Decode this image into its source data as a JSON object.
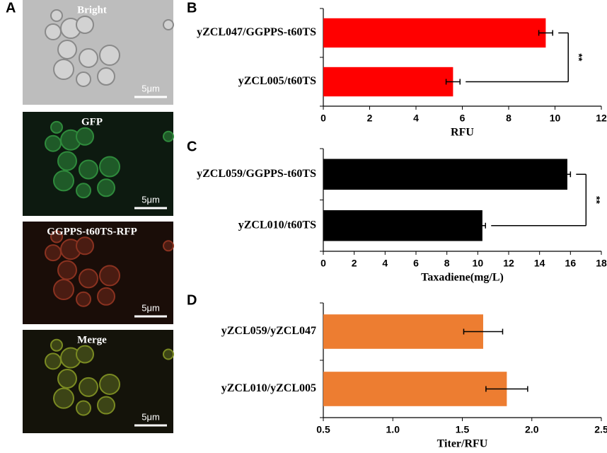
{
  "image_panels": {
    "label": "A",
    "images": [
      {
        "label": "Bright",
        "scale_bar": "5μm"
      },
      {
        "label": "GFP",
        "scale_bar": "5μm"
      },
      {
        "label": "GGPPS-t60TS-RFP",
        "scale_bar": "5μm"
      },
      {
        "label": "Merge",
        "scale_bar": "5μm"
      }
    ]
  },
  "chart_data": [
    {
      "type": "hbar",
      "panel": "B",
      "categories": [
        "yZCL047/GGPPS-t60TS",
        "yZCL005/t60TS"
      ],
      "values": [
        9.6,
        5.6
      ],
      "errors": [
        0.3,
        0.3
      ],
      "color": "#ff0000",
      "xlabel": "RFU",
      "xlim": [
        0,
        12
      ],
      "xticks": [
        0,
        2,
        4,
        6,
        8,
        10,
        12
      ],
      "annotation": "**"
    },
    {
      "type": "hbar",
      "panel": "C",
      "categories": [
        "yZCL059/GGPPS-t60TS",
        "yZCL010/t60TS"
      ],
      "values": [
        15.8,
        10.3
      ],
      "errors": [
        0.2,
        0.2
      ],
      "color": "#000000",
      "xlabel": "Taxadiene(mg/L)",
      "xlim": [
        0,
        18
      ],
      "xticks": [
        0,
        2,
        4,
        6,
        8,
        10,
        12,
        14,
        16,
        18
      ],
      "annotation": "**"
    },
    {
      "type": "hbar",
      "panel": "D",
      "categories": [
        "yZCL059/yZCL047",
        "yZCL010/yZCL005"
      ],
      "values": [
        1.65,
        1.82
      ],
      "errors": [
        0.14,
        0.15
      ],
      "color": "#ed7d31",
      "xlabel": "Titer/RFU",
      "xlim": [
        0.5,
        2.5
      ],
      "xticks": [
        0.5,
        {
          "value": 1,
          "label": "1.0"
        },
        1.5,
        {
          "value": 2,
          "label": "2.0"
        },
        2.5
      ]
    }
  ]
}
